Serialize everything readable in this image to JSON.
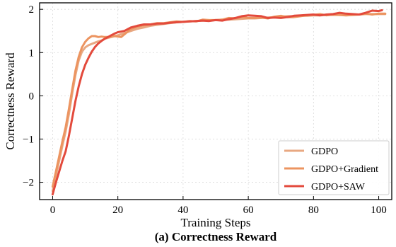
{
  "chart_data": {
    "type": "line",
    "title": "(a) Correctness Reward",
    "xlabel": "Training Steps",
    "ylabel": "Correctness Reward",
    "xlim": [
      -4,
      104
    ],
    "ylim": [
      -2.4,
      2.15
    ],
    "xticks": [
      0,
      20,
      40,
      60,
      80,
      100
    ],
    "yticks": [
      -2,
      -1,
      0,
      1,
      2
    ],
    "xtick_labels": [
      "0",
      "20",
      "40",
      "60",
      "80",
      "100"
    ],
    "ytick_labels": [
      "−2",
      "−1",
      "0",
      "1",
      "2"
    ],
    "grid": true,
    "legend_position": "bottom-right",
    "series": [
      {
        "name": "GDPO",
        "color": "#e8a882",
        "x": [
          0,
          1,
          2,
          3,
          4,
          5,
          6,
          7,
          8,
          9,
          10,
          11,
          12,
          13,
          14,
          15,
          16,
          18,
          20,
          22,
          24,
          26,
          28,
          30,
          32,
          34,
          36,
          38,
          40,
          42,
          44,
          46,
          48,
          50,
          52,
          54,
          56,
          58,
          60,
          62,
          64,
          66,
          68,
          70,
          72,
          74,
          76,
          78,
          80,
          82,
          84,
          86,
          88,
          90,
          92,
          94,
          96,
          98,
          100,
          102
        ],
        "values": [
          -2.2,
          -1.85,
          -1.5,
          -1.15,
          -0.82,
          -0.42,
          0.05,
          0.48,
          0.82,
          1.02,
          1.12,
          1.17,
          1.2,
          1.23,
          1.26,
          1.28,
          1.32,
          1.36,
          1.4,
          1.45,
          1.5,
          1.55,
          1.58,
          1.62,
          1.64,
          1.66,
          1.68,
          1.7,
          1.71,
          1.72,
          1.73,
          1.74,
          1.74,
          1.75,
          1.76,
          1.76,
          1.77,
          1.78,
          1.79,
          1.79,
          1.8,
          1.81,
          1.82,
          1.83,
          1.84,
          1.84,
          1.85,
          1.85,
          1.86,
          1.86,
          1.87,
          1.87,
          1.87,
          1.88,
          1.88,
          1.88,
          1.89,
          1.89,
          1.89,
          1.89
        ]
      },
      {
        "name": "GDPO+Gradient",
        "color": "#ec9460",
        "x": [
          0,
          1,
          2,
          3,
          4,
          5,
          6,
          7,
          8,
          9,
          10,
          11,
          12,
          13,
          14,
          15,
          16,
          17,
          18,
          19,
          20,
          21,
          22,
          24,
          26,
          28,
          30,
          32,
          34,
          36,
          38,
          40,
          42,
          44,
          46,
          48,
          50,
          52,
          54,
          56,
          58,
          60,
          62,
          64,
          66,
          68,
          70,
          72,
          74,
          76,
          78,
          80,
          82,
          84,
          86,
          88,
          90,
          92,
          94,
          96,
          98,
          100,
          102
        ],
        "values": [
          -2.1,
          -1.75,
          -1.4,
          -1.05,
          -0.72,
          -0.3,
          0.15,
          0.58,
          0.9,
          1.12,
          1.25,
          1.33,
          1.38,
          1.38,
          1.36,
          1.37,
          1.36,
          1.36,
          1.37,
          1.38,
          1.37,
          1.36,
          1.42,
          1.55,
          1.6,
          1.63,
          1.65,
          1.68,
          1.68,
          1.7,
          1.72,
          1.71,
          1.73,
          1.72,
          1.76,
          1.75,
          1.75,
          1.76,
          1.8,
          1.79,
          1.82,
          1.8,
          1.8,
          1.81,
          1.79,
          1.83,
          1.85,
          1.82,
          1.82,
          1.84,
          1.86,
          1.87,
          1.89,
          1.86,
          1.88,
          1.87,
          1.86,
          1.87,
          1.88,
          1.9,
          1.88,
          1.9,
          1.9
        ]
      },
      {
        "name": "GDPO+SAW",
        "color": "#e34a3c",
        "x": [
          0,
          1,
          2,
          3,
          4,
          5,
          6,
          7,
          8,
          9,
          10,
          11,
          12,
          13,
          14,
          15,
          16,
          17,
          18,
          19,
          20,
          22,
          24,
          26,
          28,
          30,
          32,
          34,
          36,
          38,
          40,
          42,
          44,
          46,
          48,
          50,
          52,
          54,
          56,
          58,
          60,
          62,
          64,
          66,
          68,
          70,
          72,
          74,
          76,
          78,
          80,
          82,
          84,
          86,
          88,
          90,
          92,
          94,
          96,
          98,
          100,
          101
        ],
        "values": [
          -2.28,
          -2.0,
          -1.75,
          -1.5,
          -1.28,
          -0.92,
          -0.52,
          -0.12,
          0.22,
          0.5,
          0.72,
          0.88,
          1.02,
          1.13,
          1.21,
          1.27,
          1.32,
          1.36,
          1.4,
          1.44,
          1.47,
          1.5,
          1.58,
          1.62,
          1.65,
          1.65,
          1.67,
          1.67,
          1.69,
          1.7,
          1.71,
          1.72,
          1.73,
          1.74,
          1.73,
          1.75,
          1.74,
          1.77,
          1.8,
          1.84,
          1.86,
          1.85,
          1.84,
          1.8,
          1.81,
          1.8,
          1.82,
          1.85,
          1.86,
          1.87,
          1.88,
          1.86,
          1.88,
          1.89,
          1.92,
          1.9,
          1.89,
          1.88,
          1.92,
          1.97,
          1.96,
          1.98
        ]
      }
    ]
  }
}
